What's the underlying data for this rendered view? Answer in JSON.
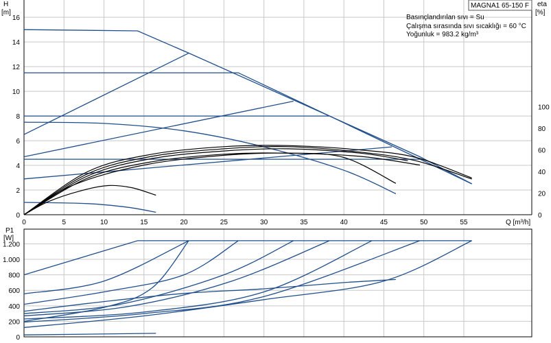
{
  "model_label": "MAGNA1 65-150 F",
  "info_lines": [
    "Basınçlandırılan sıvı = Su",
    "Çalışma sırasında sıvı sıcaklığı = 60 °C",
    "Yoğunluk = 983.2 kg/m³"
  ],
  "colors": {
    "pump_curve": "#1f4e8c",
    "efficiency": "#000000",
    "grid": "#c8c8c8"
  },
  "chart_data": [
    {
      "type": "line",
      "ylabel": "H",
      "yunit": "[m]",
      "y2label": "eta",
      "y2unit": "[%]",
      "xlabel": "Q [m³/h]",
      "xlim": [
        0,
        63.5
      ],
      "ylim": [
        0,
        17.4
      ],
      "y2lim": [
        0,
        100
      ],
      "xticks": [
        0,
        5,
        10,
        15,
        20,
        25,
        30,
        35,
        40,
        45,
        50,
        55
      ],
      "yticks": [
        0,
        2,
        4,
        6,
        8,
        10,
        12,
        14,
        16
      ],
      "y2ticks": [
        0,
        20,
        40,
        60,
        80,
        100
      ],
      "grid": true,
      "head_series": [
        {
          "points": [
            [
              0,
              15
            ],
            [
              14.2,
              14.9
            ],
            [
              20.6,
              13.1
            ],
            [
              38.2,
              8.0
            ],
            [
              49.5,
              4.7
            ],
            [
              56,
              2.5
            ]
          ]
        },
        {
          "points": [
            [
              0,
              11.5
            ],
            [
              26.8,
              11.5
            ],
            [
              38.2,
              8.0
            ],
            [
              56,
              2.5
            ]
          ]
        },
        {
          "points": [
            [
              0,
              8.0
            ],
            [
              38.2,
              8.0
            ]
          ]
        },
        {
          "points": [
            [
              0,
              4.5
            ],
            [
              49.5,
              4.5
            ]
          ]
        },
        {
          "points": [
            [
              0,
              6.5
            ],
            [
              20.6,
              13.1
            ]
          ]
        },
        {
          "points": [
            [
              0,
              4.7
            ],
            [
              33.7,
              9.2
            ]
          ]
        },
        {
          "points": [
            [
              0,
              2.9
            ],
            [
              46,
              5.5
            ]
          ]
        },
        {
          "points": [
            [
              0,
              7.5
            ],
            [
              10,
              7.4
            ],
            [
              20,
              6.8
            ],
            [
              30,
              5.5
            ],
            [
              40,
              3.6
            ],
            [
              46.5,
              1.7
            ]
          ]
        },
        {
          "points": [
            [
              0,
              1.0
            ],
            [
              8,
              0.9
            ],
            [
              13,
              0.6
            ],
            [
              16.5,
              0.2
            ]
          ]
        }
      ],
      "eta_series": [
        {
          "points": [
            [
              0,
              0
            ],
            [
              3,
              12
            ],
            [
              7,
              22
            ],
            [
              10.5,
              27
            ],
            [
              13.5,
              25
            ],
            [
              16.5,
              18
            ]
          ]
        },
        {
          "points": [
            [
              0,
              0
            ],
            [
              6,
              27
            ],
            [
              15,
              46
            ],
            [
              25,
              55
            ],
            [
              33,
              57
            ],
            [
              40,
              53
            ],
            [
              46.5,
              29
            ]
          ]
        },
        {
          "points": [
            [
              0,
              0
            ],
            [
              8,
              34
            ],
            [
              16,
              49
            ],
            [
              25,
              56
            ],
            [
              33,
              57
            ],
            [
              42,
              54
            ],
            [
              49.5,
              46
            ]
          ]
        },
        {
          "points": [
            [
              0,
              0
            ],
            [
              8,
              36
            ],
            [
              16,
              52
            ],
            [
              25,
              59
            ],
            [
              33,
              61
            ],
            [
              42,
              57
            ],
            [
              48,
              50
            ]
          ]
        },
        {
          "points": [
            [
              0,
              0
            ],
            [
              8,
              38
            ],
            [
              16,
              54
            ],
            [
              25,
              61
            ],
            [
              33,
              63
            ],
            [
              42,
              58
            ],
            [
              49,
              50
            ],
            [
              56,
              33
            ]
          ]
        },
        {
          "points": [
            [
              0,
              0
            ],
            [
              8,
              40
            ],
            [
              16,
              56
            ],
            [
              25,
              63
            ],
            [
              33,
              64
            ],
            [
              42,
              60
            ],
            [
              49,
              53
            ],
            [
              56,
              34
            ]
          ]
        }
      ]
    },
    {
      "type": "line",
      "ylabel": "P1",
      "yunit": "[W]",
      "xlim": [
        0,
        63.5
      ],
      "ylim": [
        0,
        1390
      ],
      "yticks": [
        0,
        200,
        400,
        600,
        800,
        1000,
        1200
      ],
      "ytick_labels": [
        "0",
        "200",
        "400",
        "600",
        "800",
        "1.000",
        "1.200"
      ],
      "grid": true,
      "power_series": [
        {
          "points": [
            [
              0,
              800
            ],
            [
              14.2,
              1240
            ],
            [
              56,
              1240
            ]
          ]
        },
        {
          "points": [
            [
              0,
              555
            ],
            [
              10,
              720
            ],
            [
              20.6,
              1240
            ]
          ]
        },
        {
          "points": [
            [
              0,
              420
            ],
            [
              10,
              580
            ],
            [
              20,
              800
            ],
            [
              26.8,
              1240
            ]
          ]
        },
        {
          "points": [
            [
              0,
              300
            ],
            [
              12,
              420
            ],
            [
              25,
              800
            ],
            [
              33.7,
              1240
            ]
          ]
        },
        {
          "points": [
            [
              0,
              270
            ],
            [
              13,
              390
            ],
            [
              26,
              720
            ],
            [
              38.2,
              1240
            ]
          ]
        },
        {
          "points": [
            [
              0,
              230
            ],
            [
              15,
              320
            ],
            [
              30,
              580
            ],
            [
              43.5,
              1240
            ]
          ]
        },
        {
          "points": [
            [
              0,
              190
            ],
            [
              15,
              300
            ],
            [
              30,
              520
            ],
            [
              49.5,
              1240
            ]
          ]
        },
        {
          "points": [
            [
              0,
              120
            ],
            [
              15,
              270
            ],
            [
              30,
              480
            ],
            [
              45,
              720
            ],
            [
              56,
              1240
            ]
          ]
        },
        {
          "points": [
            [
              0,
              330
            ],
            [
              10,
              455
            ],
            [
              20,
              560
            ],
            [
              30,
              620
            ],
            [
              40,
              700
            ],
            [
              46.5,
              740
            ]
          ]
        },
        {
          "points": [
            [
              0,
              200
            ],
            [
              10,
              380
            ],
            [
              16,
              630
            ],
            [
              20.6,
              1240
            ]
          ]
        },
        {
          "points": [
            [
              0,
              25
            ],
            [
              16.5,
              45
            ]
          ]
        }
      ]
    }
  ]
}
